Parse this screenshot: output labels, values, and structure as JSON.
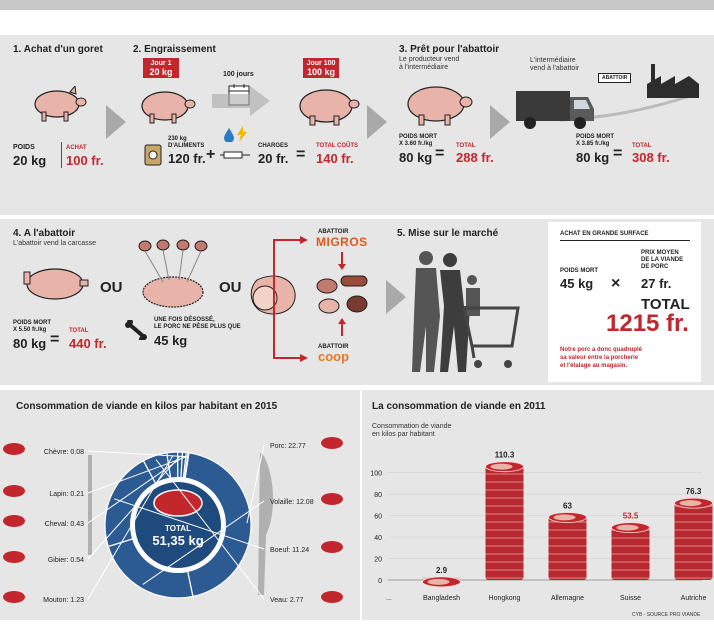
{
  "step1": {
    "title": "1. Achat d'un goret",
    "poids_lbl": "POIDS",
    "poids_val": "20 kg",
    "achat_lbl": "ACHAT",
    "achat_val": "100 fr."
  },
  "step2": {
    "title": "2. Engraissement",
    "jour1": "Jour 1",
    "jour1_kg": "20 kg",
    "jours": "100 jours",
    "jour100": "Jour 100",
    "jour100_kg": "100 kg",
    "aliments_lbl1": "230 kg",
    "aliments_lbl2": "D'ALIMENTS",
    "aliments_val": "120 fr.",
    "plus": "+",
    "charges_lbl": "CHARGES",
    "charges_val": "20 fr.",
    "eq": "=",
    "total_lbl": "TOTAL COÛTS",
    "total_val": "140 fr."
  },
  "step3": {
    "title": "3. Prêt pour l'abattoir",
    "desc1": "Le producteur vend",
    "desc2": "à l'intermédiaire",
    "inter1": "L'intermédiaire",
    "inter2": "vend à l'abattoir",
    "sign": "ABATTOIR",
    "pm1": "POIDS MORT",
    "pm1b": "X 3.60 fr./kg",
    "pm1_val": "80 kg",
    "eq": "=",
    "tot1_lbl": "TOTAL",
    "tot1_val": "288 fr.",
    "pm2": "POIDS MORT",
    "pm2b": "X 3.85 fr./kg",
    "pm2_val": "80 kg",
    "tot2_lbl": "TOTAL",
    "tot2_val": "308 fr."
  },
  "step4": {
    "title": "4. A l'abattoir",
    "desc": "L'abattoir vend la carcasse",
    "pm": "POIDS MORT",
    "pmb": "X 5.50 fr./kg",
    "pm_val": "80 kg",
    "eq": "=",
    "tot_lbl": "TOTAL",
    "tot_val": "440 fr.",
    "ou": "OU",
    "ou2": "OU",
    "deso1": "UNE FOIS DÉSOSSÉ,",
    "deso2": "LE PORC NE PÈSE PLUS QUE",
    "deso_val": "45 kg",
    "ab1": "ABATTOIR",
    "migros": "MIGROS",
    "ab2": "ABATTOIR",
    "coop": "coop"
  },
  "step5": {
    "title": "5. Mise sur le marché",
    "box_title": "ACHAT EN GRANDE SURFACE",
    "pm": "POIDS MORT",
    "pm_val": "45 kg",
    "x": "×",
    "prix1": "PRIX MOYEN",
    "prix2": "DE LA VIANDE",
    "prix3": "DE PORC",
    "prix_val": "27 fr.",
    "total_lbl": "TOTAL",
    "total_val": "1215 fr.",
    "note1": "Notre porc a donc quadruplé",
    "note2": "sa valeur entre la porcherie",
    "note3": "et l'étalage au magasin."
  },
  "colors": {
    "red": "#c1272d",
    "blue": "#2c5b94",
    "grey": "#e6e6e6",
    "dark": "#2d2d2d"
  },
  "chart_data": [
    {
      "type": "pie",
      "title": "Consommation de viande en kilos par habitant en 2015",
      "center_label": "TOTAL",
      "center_value": "51,35 kg",
      "slices": [
        {
          "label": "Porc",
          "value": 22.77,
          "display": "22.77"
        },
        {
          "label": "Volaille",
          "value": 12.08,
          "display": "12.08"
        },
        {
          "label": "Boeuf",
          "value": 11.24,
          "display": "11.24"
        },
        {
          "label": "Veau",
          "value": 2.77,
          "display": "2.77"
        },
        {
          "label": "Mouton",
          "value": 1.23,
          "display": "1.23"
        },
        {
          "label": "Gibier",
          "value": 0.54,
          "display": "0.54"
        },
        {
          "label": "Cheval",
          "value": 0.43,
          "display": "0.43"
        },
        {
          "label": "Lapin",
          "value": 0.21,
          "display": "0.21"
        },
        {
          "label": "Chèvre",
          "value": 0.08,
          "display": "0.08"
        }
      ]
    },
    {
      "type": "bar",
      "title": "La consommation de viande en 2011",
      "ylabel1": "Consommation de viande",
      "ylabel2": "en kilos par habitant",
      "categories": [
        "Bangladesh",
        "Hongkong",
        "Allemagne",
        "Suisse",
        "Autriche"
      ],
      "values": [
        2.9,
        110.3,
        63,
        53.5,
        76.3
      ],
      "labels": [
        "2.9",
        "110.3",
        "63",
        "53.5",
        "76.3"
      ],
      "highlight": "Suisse",
      "ylim": [
        0,
        110
      ],
      "yticks": [
        0,
        20,
        40,
        60,
        80,
        100
      ],
      "x_ellipsis": "...",
      "source": "CYB - SOURCE PRO VIANDE"
    }
  ]
}
